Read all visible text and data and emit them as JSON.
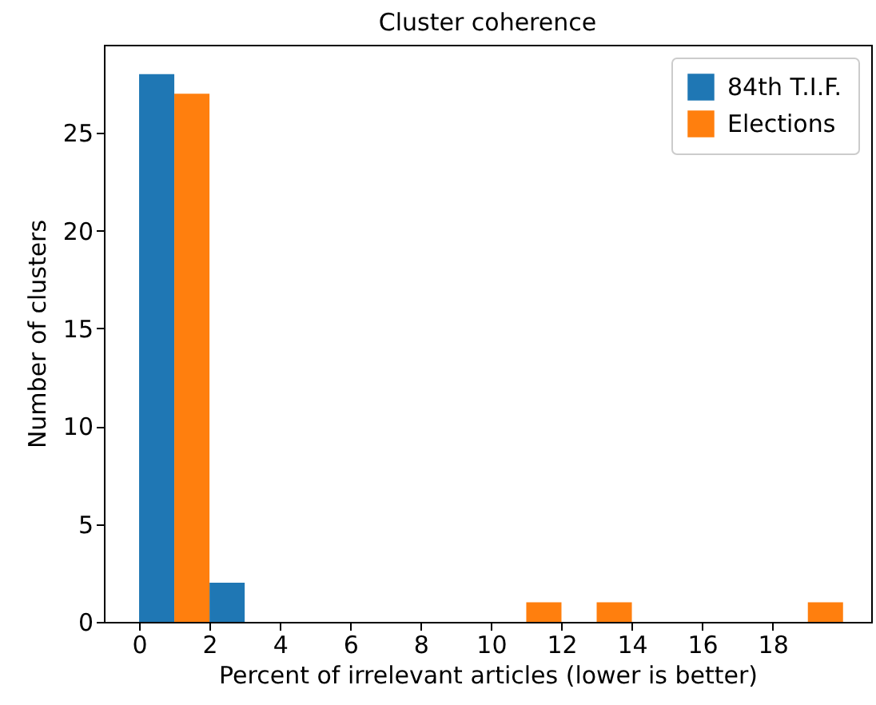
{
  "chart_data": {
    "type": "histogram",
    "title": "Cluster coherence",
    "xlabel": "Percent of irrelevant articles (lower is better)",
    "ylabel": "Number of clusters",
    "bins": [
      0,
      2,
      4,
      6,
      8,
      10,
      12,
      14,
      16,
      18,
      20
    ],
    "series": [
      {
        "name": "84th T.I.F.",
        "color": "#1f77b4",
        "values": [
          28,
          2,
          0,
          0,
          0,
          0,
          0,
          0,
          0,
          0
        ]
      },
      {
        "name": "Elections",
        "color": "#ff7f0e",
        "values": [
          27,
          0,
          0,
          0,
          0,
          1,
          1,
          0,
          0,
          1
        ]
      }
    ],
    "xlim": [
      -1,
      20.8
    ],
    "ylim": [
      0,
      29.5
    ],
    "xticks": [
      0,
      2,
      4,
      6,
      8,
      10,
      12,
      14,
      16,
      18
    ],
    "yticks": [
      0,
      5,
      10,
      15,
      20,
      25
    ],
    "legend": "top right",
    "grid": false
  }
}
